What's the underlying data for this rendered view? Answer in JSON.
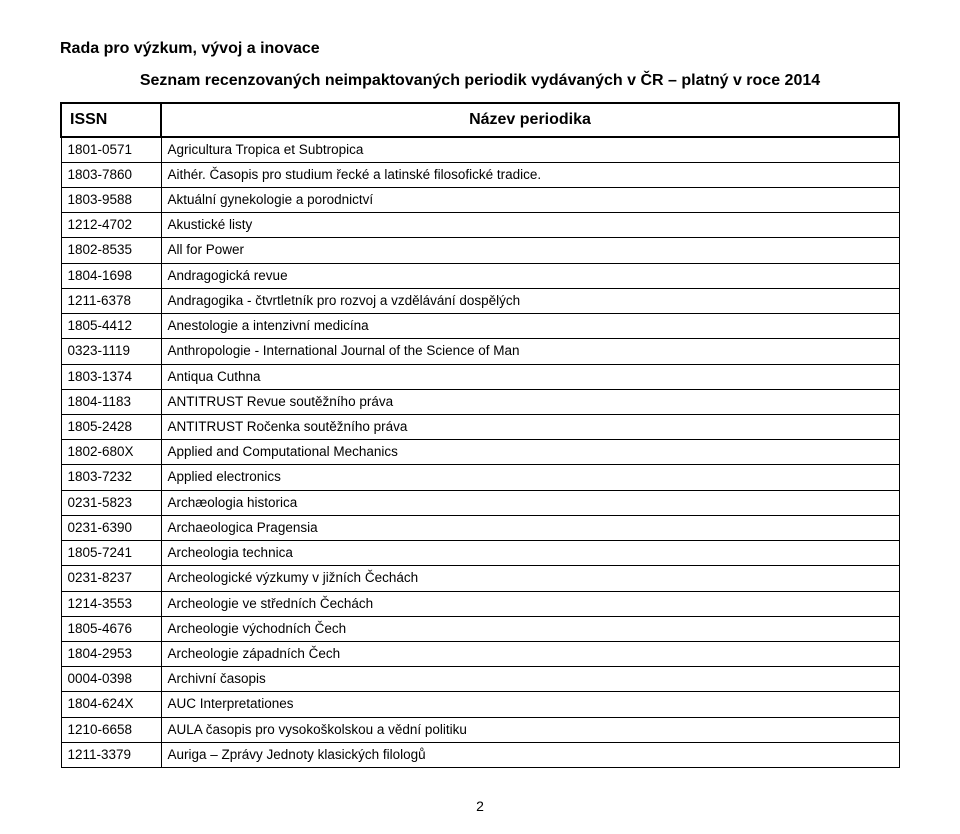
{
  "header": {
    "main_title": "Rada pro výzkum, vývoj a inovace",
    "sub_title": "Seznam recenzovaných neimpaktovaných periodik vydávaných v ČR – platný v roce 2014"
  },
  "table": {
    "col_issn": "ISSN",
    "col_name": "Název periodika",
    "rows": [
      {
        "issn": "1801-0571",
        "name": "Agricultura Tropica et Subtropica"
      },
      {
        "issn": "1803-7860",
        "name": "Aithér. Časopis pro studium řecké a latinské filosofické tradice."
      },
      {
        "issn": "1803-9588",
        "name": "Aktuální gynekologie a porodnictví"
      },
      {
        "issn": "1212-4702",
        "name": "Akustické listy"
      },
      {
        "issn": "1802-8535",
        "name": "All for Power"
      },
      {
        "issn": "1804-1698",
        "name": "Andragogická revue"
      },
      {
        "issn": "1211-6378",
        "name": "Andragogika - čtvrtletník pro rozvoj a vzdělávání dospělých"
      },
      {
        "issn": "1805-4412",
        "name": "Anestologie a intenzivní medicína"
      },
      {
        "issn": "0323-1119",
        "name": "Anthropologie - International Journal of the Science of Man"
      },
      {
        "issn": "1803-1374",
        "name": "Antiqua Cuthna"
      },
      {
        "issn": "1804-1183",
        "name": "ANTITRUST Revue soutěžního práva"
      },
      {
        "issn": "1805-2428",
        "name": "ANTITRUST Ročenka soutěžního práva"
      },
      {
        "issn": "1802-680X",
        "name": "Applied and Computational Mechanics"
      },
      {
        "issn": "1803-7232",
        "name": "Applied electronics"
      },
      {
        "issn": "0231-5823",
        "name": "Archæologia historica"
      },
      {
        "issn": "0231-6390",
        "name": "Archaeologica Pragensia"
      },
      {
        "issn": "1805-7241",
        "name": "Archeologia technica"
      },
      {
        "issn": "0231-8237",
        "name": "Archeologické výzkumy v jižních Čechách"
      },
      {
        "issn": "1214-3553",
        "name": "Archeologie ve středních Čechách"
      },
      {
        "issn": "1805-4676",
        "name": "Archeologie východních Čech"
      },
      {
        "issn": "1804-2953",
        "name": "Archeologie západních Čech"
      },
      {
        "issn": "0004-0398",
        "name": "Archivní časopis"
      },
      {
        "issn": "1804-624X",
        "name": "AUC Interpretationes"
      },
      {
        "issn": "1210-6658",
        "name": "AULA časopis pro vysokoškolskou a vědní politiku"
      },
      {
        "issn": "1211-3379",
        "name": "Auriga – Zprávy Jednoty klasických filologů"
      }
    ]
  },
  "page_number": "2"
}
